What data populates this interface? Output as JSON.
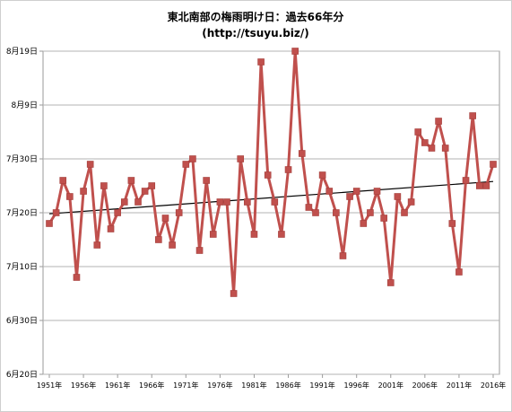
{
  "chart_data": {
    "type": "line",
    "title": "東北南部の梅雨明け日：過去66年分",
    "subtitle": "(http://tsuyu.biz/)",
    "y_tick_labels": [
      "6月20日",
      "6月30日",
      "7月10日",
      "7月20日",
      "7月30日",
      "8月9日",
      "8月19日"
    ],
    "y_tick_values": [
      0,
      10,
      20,
      30,
      40,
      50,
      60
    ],
    "ylim": [
      0,
      60
    ],
    "x_tick_labels": [
      "1951年",
      "1956年",
      "1961年",
      "1966年",
      "1971年",
      "1976年",
      "1981年",
      "1986年",
      "1991年",
      "1996年",
      "2001年",
      "2006年",
      "2011年",
      "2016年"
    ],
    "x_tick_years": [
      1951,
      1956,
      1961,
      1966,
      1971,
      1976,
      1981,
      1986,
      1991,
      1996,
      2001,
      2006,
      2011,
      2016
    ],
    "x_range": [
      1951,
      2016
    ],
    "grid": true,
    "series": [
      {
        "color": "#c0504d",
        "x": [
          1951,
          1952,
          1953,
          1954,
          1955,
          1956,
          1957,
          1958,
          1959,
          1960,
          1961,
          1962,
          1963,
          1964,
          1965,
          1966,
          1967,
          1968,
          1969,
          1970,
          1971,
          1972,
          1973,
          1974,
          1975,
          1976,
          1977,
          1978,
          1979,
          1980,
          1981,
          1982,
          1983,
          1984,
          1985,
          1986,
          1987,
          1988,
          1989,
          1990,
          1991,
          1992,
          1993,
          1994,
          1995,
          1996,
          1997,
          1998,
          1999,
          2000,
          2001,
          2002,
          2003,
          2004,
          2005,
          2006,
          2007,
          2008,
          2009,
          2010,
          2011,
          2012,
          2013,
          2014,
          2015,
          2016
        ],
        "values": [
          28,
          30,
          36,
          33,
          18,
          34,
          39,
          24,
          35,
          27,
          30,
          32,
          36,
          32,
          34,
          35,
          25,
          29,
          24,
          30,
          39,
          40,
          23,
          36,
          26,
          32,
          32,
          15,
          40,
          32,
          26,
          58,
          37,
          32,
          26,
          38,
          60,
          41,
          31,
          30,
          37,
          34,
          30,
          22,
          33,
          34,
          28,
          30,
          34,
          29,
          17,
          33,
          30,
          32,
          45,
          43,
          42,
          47,
          42,
          28,
          19,
          36,
          48,
          35,
          35,
          39
        ]
      },
      {
        "type": "trendline",
        "color": "#000000",
        "values": [
          29.8,
          35.8
        ]
      }
    ]
  }
}
